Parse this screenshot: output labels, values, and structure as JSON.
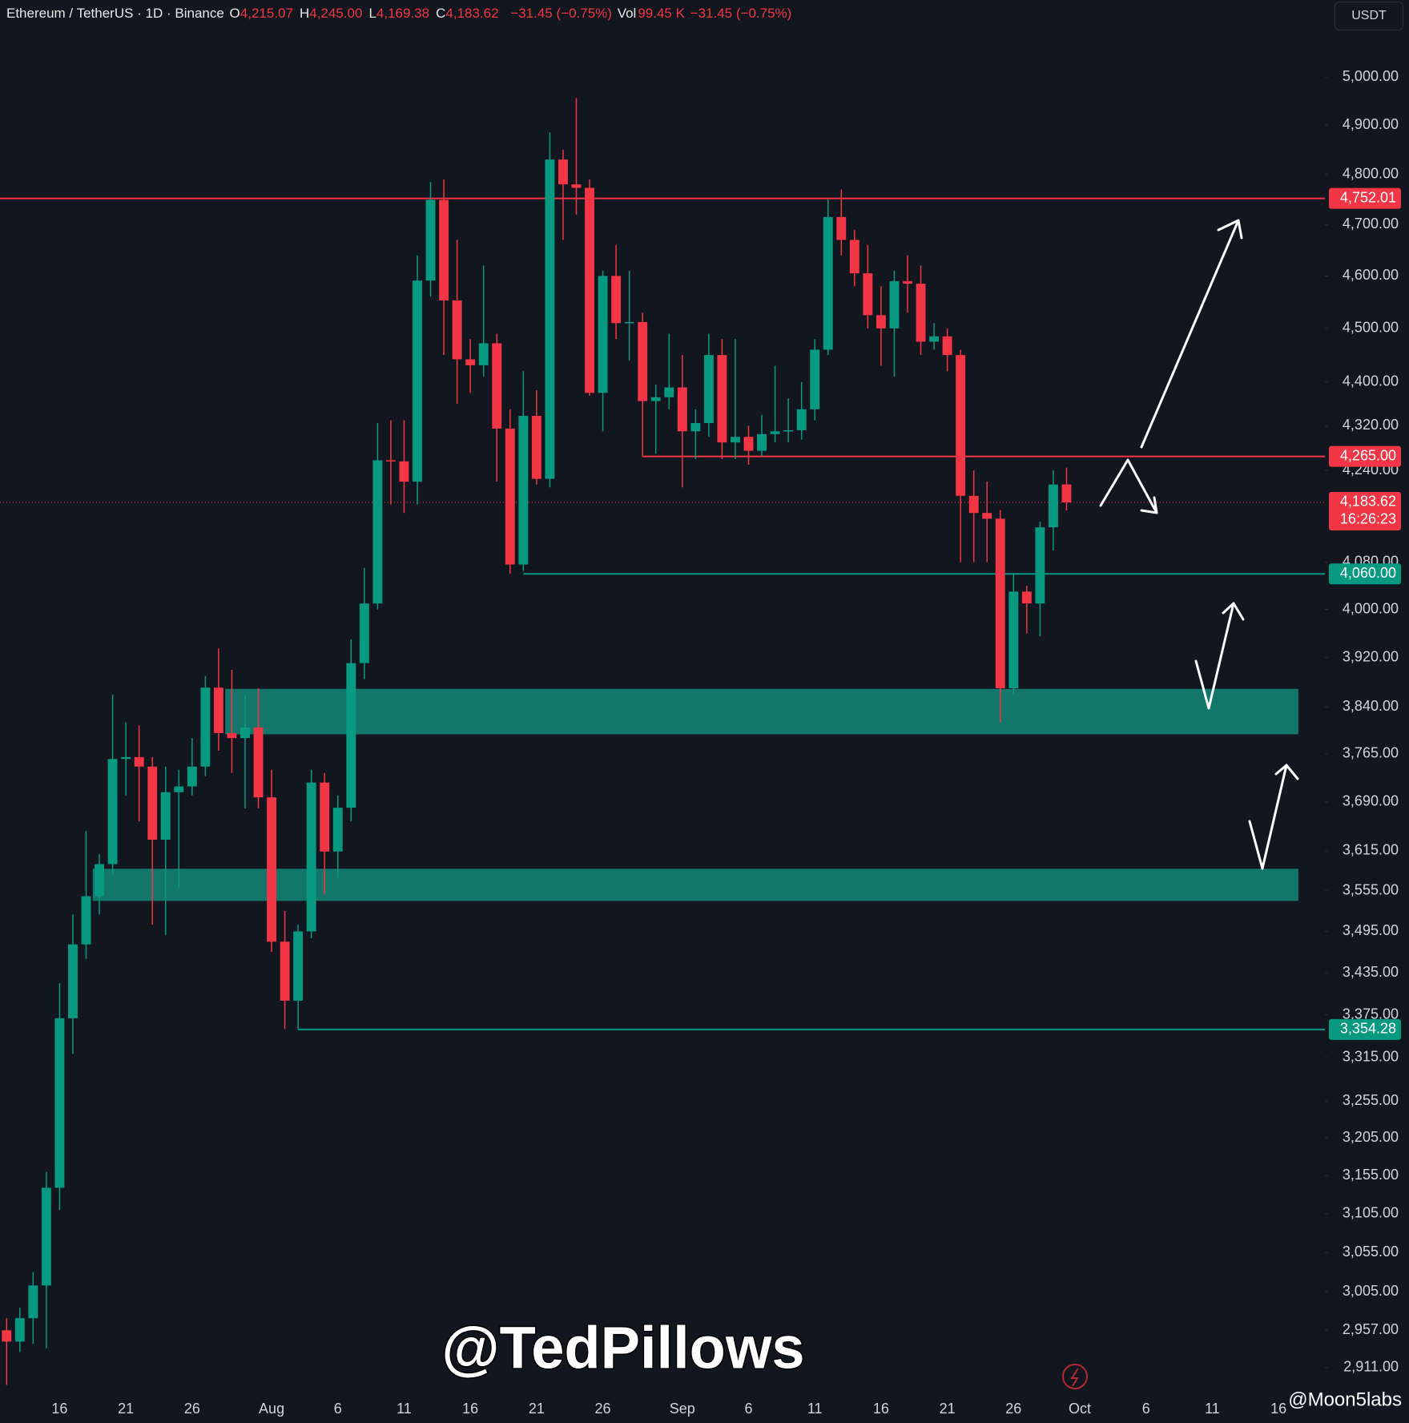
{
  "header": {
    "symbol": "Ethereum / TetherUS · 1D · Binance",
    "fields": [
      {
        "key": "O",
        "value": "4,215.07"
      },
      {
        "key": "H",
        "value": "4,245.00"
      },
      {
        "key": "L",
        "value": "4,169.38"
      },
      {
        "key": "C",
        "value": "4,183.62"
      }
    ],
    "change": "−31.45 (−0.75%)",
    "vol_key": "Vol",
    "vol": "99.45 K",
    "vol_change": "−31.45 (−0.75%)",
    "currency": "USDT"
  },
  "watermark": "@TedPillows",
  "credit": "@Moon5labs",
  "chart_data": {
    "type": "candlestick",
    "log_scale": true,
    "up_color": "#089981",
    "down_color": "#f23645",
    "categories": [
      null,
      null,
      null,
      null,
      "16",
      null,
      null,
      null,
      null,
      "21",
      null,
      null,
      null,
      null,
      "26",
      null,
      null,
      null,
      null,
      null,
      "Aug",
      null,
      null,
      null,
      null,
      "6",
      null,
      null,
      null,
      null,
      "11",
      null,
      null,
      null,
      null,
      "16",
      null,
      null,
      null,
      null,
      "21",
      null,
      null,
      null,
      null,
      "26",
      null,
      null,
      null,
      null,
      null,
      "Sep",
      null,
      null,
      null,
      null,
      "6",
      null,
      null,
      null,
      null,
      "11",
      null,
      null,
      null,
      null,
      "16",
      null,
      null,
      null,
      null,
      "21",
      null,
      null,
      null,
      null,
      "26",
      null,
      null,
      null,
      null,
      "Oct",
      null,
      null,
      null,
      null,
      "6",
      null,
      null,
      null,
      null,
      "11",
      null,
      null,
      null,
      null,
      "16",
      null,
      null,
      null
    ],
    "open": [
      2957,
      2943,
      2972,
      3013,
      3139,
      3370,
      3476,
      3547,
      3595,
      3757,
      3760,
      3745,
      3632,
      3705,
      3714,
      3745,
      3871,
      3798,
      3790,
      3807,
      3697,
      3480,
      3395,
      3495,
      3720,
      3614,
      3681,
      3911,
      4010,
      4258,
      4256,
      4220,
      4591,
      4749,
      4553,
      4442,
      4431,
      4472,
      4315,
      4076,
      4338,
      4225,
      4830,
      4780,
      4773,
      4380,
      4600,
      4510,
      4512,
      4365,
      4372,
      4390,
      4310,
      4325,
      4450,
      4290,
      4300,
      4275,
      4305,
      4310,
      4312,
      4350,
      4460,
      4715,
      4670,
      4605,
      4525,
      4500,
      4590,
      4585,
      4475,
      4485,
      4450,
      4195,
      4165,
      4155,
      3870,
      4030,
      4010,
      4140,
      4215.07,
      null,
      null,
      null,
      null,
      null,
      null,
      null,
      null,
      null,
      null,
      null,
      null,
      null,
      null,
      null,
      null,
      null,
      null,
      null
    ],
    "high": [
      2972,
      2985,
      3030,
      3160,
      3420,
      3520,
      3645,
      3610,
      3860,
      3815,
      3810,
      3760,
      3745,
      3740,
      3790,
      3890,
      3935,
      3900,
      3860,
      3870,
      3740,
      3525,
      3505,
      3740,
      3735,
      3700,
      3950,
      4070,
      4325,
      4330,
      4330,
      4640,
      4785,
      4790,
      4670,
      4480,
      4620,
      4490,
      4350,
      4420,
      4385,
      4885,
      4850,
      4956,
      4790,
      4610,
      4660,
      4610,
      4530,
      4395,
      4490,
      4450,
      4350,
      4490,
      4480,
      4480,
      4320,
      4340,
      4430,
      4370,
      4400,
      4480,
      4750,
      4770,
      4690,
      4660,
      4580,
      4610,
      4640,
      4620,
      4510,
      4500,
      4460,
      4240,
      4220,
      4170,
      4060,
      4040,
      4150,
      4240,
      4245,
      null,
      null,
      null,
      null,
      null,
      null,
      null,
      null,
      null,
      null,
      null,
      null,
      null,
      null,
      null,
      null,
      null,
      null,
      null
    ],
    "low": [
      2890,
      2930,
      2940,
      2935,
      3110,
      3320,
      3455,
      3520,
      3580,
      3700,
      3660,
      3505,
      3490,
      3560,
      3700,
      3730,
      3770,
      3735,
      3680,
      3680,
      3465,
      3355,
      3355,
      3485,
      3550,
      3575,
      3660,
      3885,
      4000,
      4180,
      4165,
      4180,
      4560,
      4450,
      4360,
      4380,
      4410,
      4220,
      4060,
      4065,
      4215,
      4210,
      4670,
      4720,
      4375,
      4310,
      4480,
      4440,
      4265,
      4270,
      4350,
      4210,
      4260,
      4300,
      4260,
      4260,
      4250,
      4265,
      4290,
      4290,
      4295,
      4330,
      4450,
      4640,
      4580,
      4500,
      4430,
      4410,
      4530,
      4450,
      4460,
      4420,
      4080,
      4080,
      4080,
      3815,
      3860,
      3960,
      3955,
      4100,
      4169.38,
      null,
      null,
      null,
      null,
      null,
      null,
      null,
      null,
      null,
      null,
      null,
      null,
      null,
      null,
      null,
      null,
      null,
      null,
      null
    ],
    "close": [
      2943,
      2972,
      3013,
      3139,
      3370,
      3476,
      3547,
      3595,
      3757,
      3760,
      3745,
      3632,
      3705,
      3714,
      3745,
      3871,
      3798,
      3790,
      3807,
      3697,
      3480,
      3395,
      3495,
      3720,
      3614,
      3681,
      3911,
      4010,
      4258,
      4256,
      4220,
      4591,
      4749,
      4553,
      4442,
      4431,
      4472,
      4315,
      4076,
      4338,
      4225,
      4830,
      4780,
      4773,
      4380,
      4600,
      4510,
      4512,
      4365,
      4372,
      4390,
      4310,
      4325,
      4450,
      4290,
      4300,
      4275,
      4305,
      4310,
      4312,
      4350,
      4460,
      4715,
      4670,
      4605,
      4525,
      4500,
      4590,
      4585,
      4475,
      4485,
      4450,
      4195,
      4165,
      4155,
      3870,
      4030,
      4010,
      4140,
      4215,
      4183.62,
      null,
      null,
      null,
      null,
      null,
      null,
      null,
      null,
      null,
      null,
      null,
      null,
      null,
      null,
      null,
      null,
      null,
      null,
      null
    ],
    "ylim": [
      2875,
      5164
    ],
    "yticks": [
      {
        "value": 5000,
        "label": "5,000.00"
      },
      {
        "value": 4900,
        "label": "4,900.00"
      },
      {
        "value": 4800,
        "label": "4,800.00"
      },
      {
        "value": 4700,
        "label": "4,700.00"
      },
      {
        "value": 4600,
        "label": "4,600.00"
      },
      {
        "value": 4500,
        "label": "4,500.00"
      },
      {
        "value": 4400,
        "label": "4,400.00"
      },
      {
        "value": 4320,
        "label": "4,320.00"
      },
      {
        "value": 4240,
        "label": "4,240.00"
      },
      {
        "value": 4080,
        "label": "4,080.00"
      },
      {
        "value": 4000,
        "label": "4,000.00"
      },
      {
        "value": 3920,
        "label": "3,920.00"
      },
      {
        "value": 3840,
        "label": "3,840.00"
      },
      {
        "value": 3765,
        "label": "3,765.00"
      },
      {
        "value": 3690,
        "label": "3,690.00"
      },
      {
        "value": 3615,
        "label": "3,615.00"
      },
      {
        "value": 3555,
        "label": "3,555.00"
      },
      {
        "value": 3495,
        "label": "3,495.00"
      },
      {
        "value": 3435,
        "label": "3,435.00"
      },
      {
        "value": 3375,
        "label": "3,375.00"
      },
      {
        "value": 3315,
        "label": "3,315.00"
      },
      {
        "value": 3255,
        "label": "3,255.00"
      },
      {
        "value": 3205,
        "label": "3,205.00"
      },
      {
        "value": 3155,
        "label": "3,155.00"
      },
      {
        "value": 3105,
        "label": "3,105.00"
      },
      {
        "value": 3055,
        "label": "3,055.00"
      },
      {
        "value": 3005,
        "label": "3,005.00"
      },
      {
        "value": 2957,
        "label": "2,957.00"
      },
      {
        "value": 2911,
        "label": "2,911.00"
      }
    ],
    "zones": [
      {
        "low": 3796,
        "high": 3869,
        "start": 17,
        "end": 98,
        "color": "#12776a"
      },
      {
        "low": 3540,
        "high": 3588,
        "start": 7,
        "end": 98,
        "color": "#12776a"
      }
    ],
    "levels": [
      {
        "value": 4752.01,
        "label": "4,752.01",
        "color": "#f23645",
        "start": 0
      },
      {
        "value": 4265,
        "label": "4,265.00",
        "color": "#f23645",
        "start": 48
      },
      {
        "value": 4183.62,
        "label": "4,183.62",
        "countdown": "16:26:23",
        "color": "#f23645",
        "start": 0,
        "dotted": true
      },
      {
        "value": 4060,
        "label": "4,060.00",
        "color": "#089981",
        "start": 39
      },
      {
        "value": 3354.28,
        "label": "3,354.28",
        "color": "#089981",
        "start": 22
      }
    ]
  }
}
